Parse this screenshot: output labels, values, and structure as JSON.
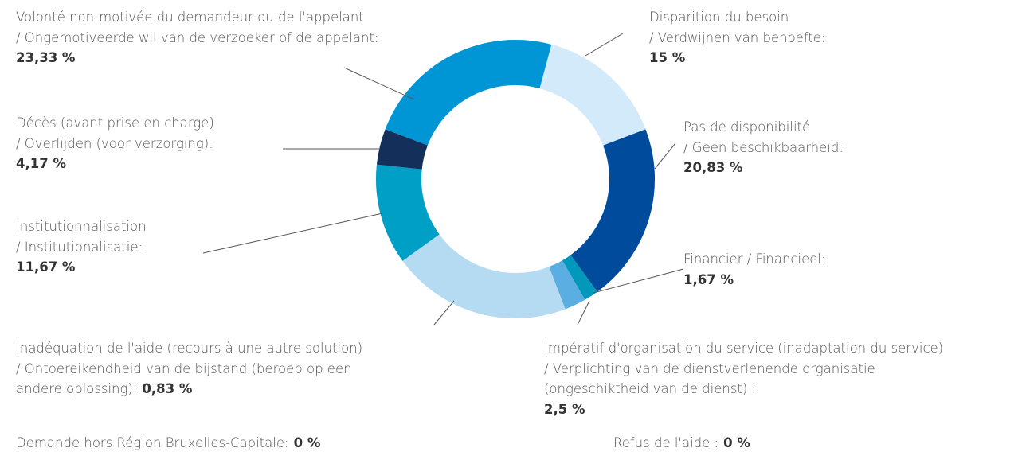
{
  "chart_data": {
    "type": "donut",
    "categories": [
      [
        "Institutionnalisation",
        "/ Institutionalisatie:"
      ],
      [
        "Décès (avant prise en charge)",
        "/ Overlijden (voor verzorging):"
      ],
      [
        "Volonté non-motivée du demandeur ou de l'appelant",
        "/ Ongemotiveerde wil van de verzoeker of de appelant:"
      ],
      [
        "Disparition du besoin",
        "/ Verdwijnen van behoefte:"
      ],
      [
        "Pas de disponibilité",
        "/ Geen beschikbaarheid:"
      ],
      [
        "Financier / Financieel:"
      ],
      [
        "Impératif d'organisation du service (inadaptation du service)",
        "/ Verplichting van de dienstverlenende organisatie",
        "(ongeschiktheid van de dienst) :"
      ],
      [
        "Inadéquation de l'aide (recours à une autre solution)",
        "/ Ontoereikendheid van de bijstand (beroep op een",
        "andere oplossing):"
      ],
      [
        "Demande hors Région Bruxelles-Capitale:"
      ],
      [
        "Refus de l'aide :"
      ]
    ],
    "values": [
      11.67,
      4.17,
      23.33,
      15,
      20.83,
      1.67,
      2.5,
      0.83,
      0,
      0
    ],
    "value_labels": [
      "11,67 %",
      "4,17 %",
      "23,33 %",
      "15 %",
      "20,83 %",
      "1,67 %",
      "2,5 %",
      "0,83 %",
      "0 %",
      "0 %"
    ],
    "colors": [
      "#00a0c6",
      "#14305a",
      "#0096d6",
      "#d2eaf9",
      "#004b9b",
      "#0099bb",
      "#5aaee2",
      "#b5dbf2",
      null,
      null
    ]
  }
}
